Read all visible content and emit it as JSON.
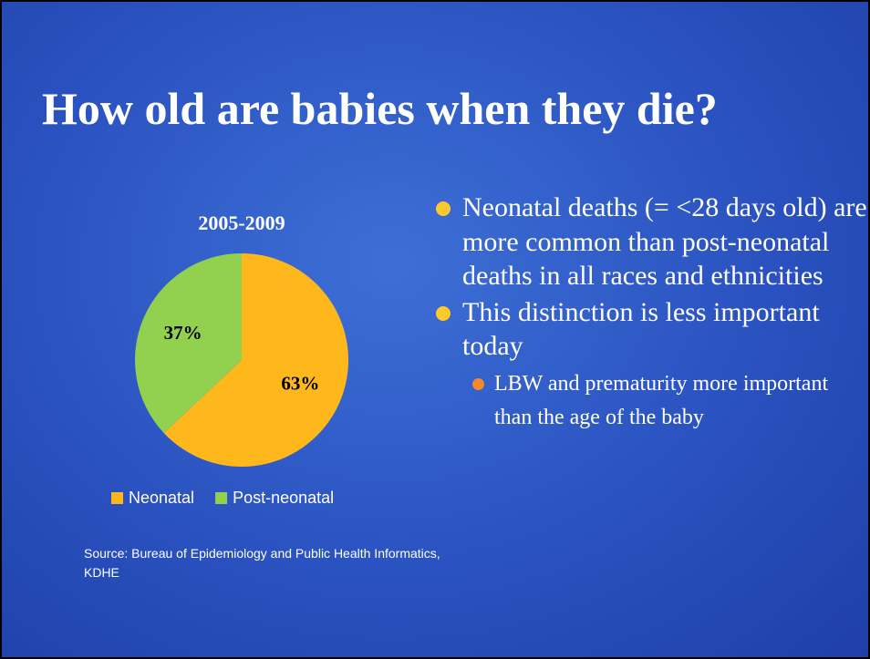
{
  "title": "How old are babies when they die?",
  "chart_data": {
    "type": "pie",
    "title": "2005-2009",
    "categories": [
      "Neonatal",
      "Post-neonatal"
    ],
    "values": [
      63,
      37
    ],
    "value_labels": [
      "63%",
      "37%"
    ],
    "colors": [
      "#ffb81c",
      "#92d050"
    ],
    "legend": "bottom"
  },
  "source": "Source: Bureau of Epidemiology and Public Health Informatics, KDHE",
  "bullets": [
    {
      "text": "Neonatal deaths (= <28 days old) are more common than post-neonatal deaths in all races and ethnicities",
      "sub": []
    },
    {
      "text": "This distinction is less important today",
      "sub": [
        "LBW and prematurity more important than the age of the baby"
      ]
    }
  ]
}
